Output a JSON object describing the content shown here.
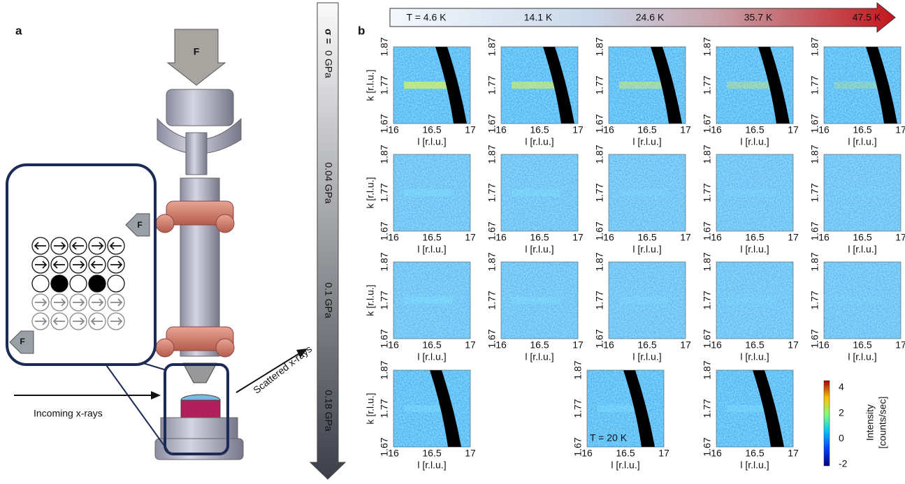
{
  "panel_a": {
    "label": "a",
    "force": "F",
    "incoming": "Incoming x-rays",
    "scattered": "Scattered x-rays"
  },
  "stress": {
    "symbol": "σ =",
    "levels": [
      "0 GPa",
      "0.04 GPa",
      "0.1 GPa",
      "0.18 GPa"
    ]
  },
  "panel_b": {
    "label": "b",
    "temperatures": [
      "T = 4.6 K",
      "14.1 K",
      "24.6 K",
      "35.7 K",
      "47.5 K"
    ],
    "x_label": "l [r.l.u.]",
    "y_label": "k [r.l.u.]",
    "xticks": [
      16,
      16.5,
      17
    ],
    "yticks": [
      1.87,
      1.77,
      1.67
    ],
    "inset_label": "T = 20 K",
    "colorbar": {
      "label": [
        "Intensity",
        "[counts/sec]"
      ],
      "ticks": [
        4,
        2,
        0,
        -2
      ]
    }
  }
}
